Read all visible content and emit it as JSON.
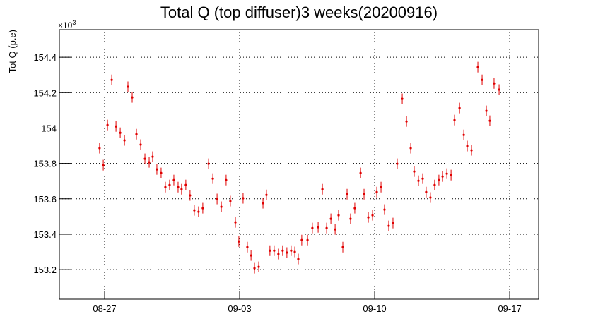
{
  "chart_data": {
    "type": "scatter",
    "title": "Total Q (top diffuser)3 weeks(20200916)",
    "y_label": "Tot Q (p.e)",
    "y_multiplier": {
      "base": "×10",
      "exponent": "3"
    },
    "xlim": [
      -2.345,
      22.5
    ],
    "xticks": [
      {
        "value": 0,
        "label": "08-27"
      },
      {
        "value": 7,
        "label": "09-03"
      },
      {
        "value": 14,
        "label": "09-10"
      },
      {
        "value": 21,
        "label": "09-17"
      }
    ],
    "ylim": [
      153.033,
      154.556
    ],
    "yticks": [
      {
        "value": 153.2,
        "label": "153.2"
      },
      {
        "value": 153.4,
        "label": "153.4"
      },
      {
        "value": 153.6,
        "label": "153.6"
      },
      {
        "value": 153.8,
        "label": "153.8"
      },
      {
        "value": 154,
        "label": "154"
      },
      {
        "value": 154.2,
        "label": "154.2"
      },
      {
        "value": 154.4,
        "label": "154.4"
      }
    ],
    "grid": true,
    "series": [
      {
        "color": "#e00000",
        "x": [
          -0.26,
          -0.07,
          0.15,
          0.37,
          0.59,
          0.81,
          1.03,
          1.21,
          1.43,
          1.65,
          1.87,
          2.09,
          2.31,
          2.49,
          2.71,
          2.93,
          3.15,
          3.37,
          3.59,
          3.81,
          3.99,
          4.21,
          4.43,
          4.65,
          4.87,
          5.09,
          5.39,
          5.61,
          5.83,
          6.05,
          6.3,
          6.52,
          6.78,
          6.96,
          7.18,
          7.4,
          7.59,
          7.77,
          7.99,
          8.21,
          8.39,
          8.57,
          8.79,
          9.01,
          9.23,
          9.45,
          9.67,
          9.86,
          10.04,
          10.22,
          10.52,
          10.77,
          11.07,
          11.29,
          11.51,
          11.73,
          11.95,
          12.13,
          12.35,
          12.57,
          12.75,
          12.97,
          13.27,
          13.45,
          13.67,
          13.89,
          14.11,
          14.33,
          14.51,
          14.73,
          14.95,
          15.17,
          15.43,
          15.65,
          15.87,
          16.05,
          16.27,
          16.49,
          16.67,
          16.89,
          17.11,
          17.33,
          17.52,
          17.74,
          17.96,
          18.14,
          18.4,
          18.62,
          18.8,
          19.02,
          19.35,
          19.57,
          19.79,
          19.97,
          20.19,
          20.45
        ],
        "values": [
          153.886,
          153.79,
          154.017,
          154.272,
          154.009,
          153.973,
          153.93,
          154.233,
          154.173,
          153.965,
          153.906,
          153.826,
          153.806,
          153.838,
          153.766,
          153.746,
          153.666,
          153.678,
          153.706,
          153.666,
          153.654,
          153.678,
          153.619,
          153.535,
          153.527,
          153.547,
          153.798,
          153.714,
          153.599,
          153.555,
          153.706,
          153.587,
          153.467,
          153.359,
          153.603,
          153.327,
          153.28,
          153.208,
          153.216,
          153.575,
          153.622,
          153.307,
          153.307,
          153.288,
          153.307,
          153.296,
          153.307,
          153.3,
          153.26,
          153.367,
          153.367,
          153.435,
          153.439,
          153.654,
          153.435,
          153.487,
          153.427,
          153.507,
          153.327,
          153.626,
          153.487,
          153.547,
          153.746,
          153.626,
          153.495,
          153.507,
          153.638,
          153.666,
          153.539,
          153.447,
          153.463,
          153.798,
          154.165,
          154.037,
          153.886,
          153.754,
          153.702,
          153.714,
          153.638,
          153.607,
          153.678,
          153.706,
          153.726,
          153.742,
          153.734,
          154.045,
          154.113,
          153.961,
          153.898,
          153.874,
          154.344,
          154.272,
          154.097,
          154.041,
          154.252,
          154.217
        ],
        "yerr": [
          0.03,
          0.03,
          0.03,
          0.03,
          0.03,
          0.03,
          0.03,
          0.03,
          0.03,
          0.03,
          0.03,
          0.03,
          0.03,
          0.03,
          0.03,
          0.03,
          0.03,
          0.03,
          0.03,
          0.03,
          0.03,
          0.03,
          0.03,
          0.03,
          0.03,
          0.03,
          0.03,
          0.03,
          0.03,
          0.03,
          0.03,
          0.03,
          0.03,
          0.03,
          0.03,
          0.03,
          0.03,
          0.03,
          0.03,
          0.03,
          0.03,
          0.03,
          0.03,
          0.03,
          0.03,
          0.03,
          0.03,
          0.03,
          0.03,
          0.03,
          0.03,
          0.03,
          0.03,
          0.03,
          0.03,
          0.03,
          0.03,
          0.03,
          0.03,
          0.03,
          0.03,
          0.03,
          0.03,
          0.03,
          0.03,
          0.03,
          0.03,
          0.03,
          0.03,
          0.03,
          0.03,
          0.03,
          0.03,
          0.03,
          0.03,
          0.03,
          0.03,
          0.03,
          0.03,
          0.03,
          0.03,
          0.03,
          0.03,
          0.03,
          0.03,
          0.03,
          0.03,
          0.03,
          0.03,
          0.03,
          0.03,
          0.03,
          0.03,
          0.03,
          0.03,
          0.03
        ]
      }
    ]
  }
}
